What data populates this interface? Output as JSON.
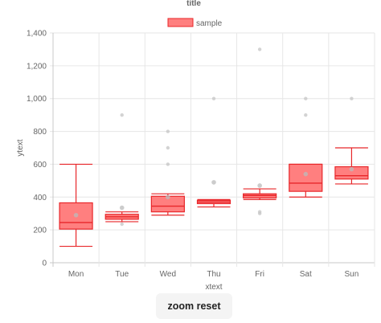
{
  "chart_data": {
    "type": "boxplot",
    "title": "title",
    "xlabel": "xtext",
    "ylabel": "ytext",
    "ylim": [
      0,
      1400
    ],
    "yticks": [
      0,
      200,
      400,
      600,
      800,
      1000,
      1200,
      1400
    ],
    "ytick_labels": [
      "0",
      "200",
      "400",
      "600",
      "800",
      "1,000",
      "1,200",
      "1,400"
    ],
    "categories": [
      "Mon",
      "Tue",
      "Wed",
      "Thu",
      "Fri",
      "Sat",
      "Sun"
    ],
    "grid": true,
    "legend_position": "top",
    "series": [
      {
        "name": "sample",
        "fill_color": "#ff7f7f",
        "line_color": "#e8272a",
        "boxes": [
          {
            "min": 100,
            "q1": 205,
            "median": 245,
            "q3": 365,
            "max": 600,
            "mean": 290,
            "outliers": []
          },
          {
            "min": 250,
            "q1": 265,
            "median": 280,
            "q3": 295,
            "max": 310,
            "mean": 335,
            "outliers": [
              900,
              235
            ]
          },
          {
            "min": 290,
            "q1": 310,
            "median": 345,
            "q3": 405,
            "max": 420,
            "mean": 400,
            "outliers": [
              800,
              700,
              600
            ]
          },
          {
            "min": 340,
            "q1": 360,
            "median": 370,
            "q3": 380,
            "max": 385,
            "mean": 490,
            "outliers": [
              1000
            ]
          },
          {
            "min": 385,
            "q1": 395,
            "median": 410,
            "q3": 420,
            "max": 450,
            "mean": 470,
            "outliers": [
              1300,
              310,
              300
            ]
          },
          {
            "min": 400,
            "q1": 435,
            "median": 485,
            "q3": 600,
            "max": 600,
            "mean": 540,
            "outliers": [
              1000,
              900
            ]
          },
          {
            "min": 480,
            "q1": 510,
            "median": 530,
            "q3": 585,
            "max": 700,
            "mean": 570,
            "outliers": [
              1000
            ]
          }
        ]
      }
    ]
  },
  "ui": {
    "zoom_reset_label": "zoom reset"
  }
}
